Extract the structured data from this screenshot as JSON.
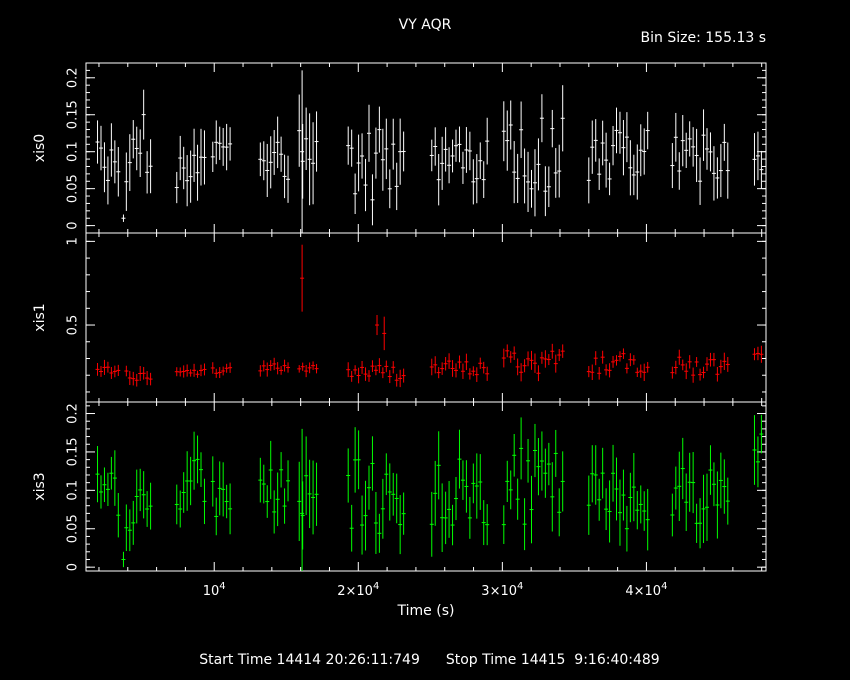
{
  "title": "VY AQR",
  "bin_size": "Bin Size: 155.13 s",
  "start_time": "Start Time 14414 20:26:11:749",
  "stop_time": "Stop Time 14415  9:16:40:489",
  "colors": {
    "background": "#000000",
    "axes": "#ffffff",
    "xis0": "#ffffff",
    "xis1": "#ff0000",
    "xis3": "#00ff00"
  },
  "chart_data": {
    "type": "scatter",
    "xlabel": "Time (s)",
    "xlim": [
      1100,
      48300
    ],
    "x_ticks": [
      {
        "value": 10000,
        "mantissa": "10",
        "exponent": "4"
      },
      {
        "value": 20000,
        "mantissa": "2×10",
        "exponent": "4"
      },
      {
        "value": 30000,
        "mantissa": "3×10",
        "exponent": "4"
      },
      {
        "value": 40000,
        "mantissa": "4×10",
        "exponent": "4"
      }
    ],
    "panels": [
      {
        "ylabel": "xis0",
        "color": "#ffffff",
        "ylim": [
          -0.01,
          0.22
        ],
        "y_ticks": [
          0,
          0.05,
          0.1,
          0.15,
          0.2
        ],
        "y_tick_labels": [
          "0",
          "0.05",
          "0.1",
          "0.15",
          "0.2"
        ],
        "segments": [
          {
            "t0": 1900,
            "n": 7,
            "base": 0.085,
            "amp": 0.035,
            "err": 0.03
          },
          {
            "t0": 3900,
            "n": 8,
            "base": 0.11,
            "amp": 0.06,
            "err": 0.035
          },
          {
            "t0": 7400,
            "n": 9,
            "base": 0.075,
            "amp": 0.03,
            "err": 0.03
          },
          {
            "t0": 9900,
            "n": 6,
            "base": 0.1,
            "amp": 0.015,
            "err": 0.025
          },
          {
            "t0": 13200,
            "n": 9,
            "base": 0.085,
            "amp": 0.03,
            "err": 0.03
          },
          {
            "t0": 15900,
            "n": 6,
            "base": 0.11,
            "amp": 0.03,
            "err": 0.05
          },
          {
            "t0": 19300,
            "n": 17,
            "base": 0.08,
            "amp": 0.05,
            "err": 0.035
          },
          {
            "t0": 25100,
            "n": 17,
            "base": 0.085,
            "amp": 0.035,
            "err": 0.03
          },
          {
            "t0": 30100,
            "n": 18,
            "base": 0.1,
            "amp": 0.06,
            "err": 0.035
          },
          {
            "t0": 36000,
            "n": 18,
            "base": 0.095,
            "amp": 0.035,
            "err": 0.03
          },
          {
            "t0": 41800,
            "n": 17,
            "base": 0.09,
            "amp": 0.035,
            "err": 0.03
          },
          {
            "t0": 47500,
            "n": 3,
            "base": 0.07,
            "amp": 0.04,
            "err": 0.03
          }
        ],
        "spikes": [
          {
            "t": 3700,
            "v": 0.01,
            "err": 0.005
          },
          {
            "t": 16100,
            "v": 0.1,
            "err": 0.11
          }
        ]
      },
      {
        "ylabel": "xis1",
        "color": "#ff0000",
        "ylim": [
          0.04,
          1.05
        ],
        "y_ticks": [
          0.5,
          1
        ],
        "y_tick_labels": [
          "0.5",
          "1"
        ],
        "segments": [
          {
            "t0": 1900,
            "n": 7,
            "base": 0.22,
            "amp": 0.04,
            "err": 0.035
          },
          {
            "t0": 3900,
            "n": 8,
            "base": 0.22,
            "amp": 0.05,
            "err": 0.035
          },
          {
            "t0": 7400,
            "n": 9,
            "base": 0.22,
            "amp": 0.02,
            "err": 0.03
          },
          {
            "t0": 9900,
            "n": 6,
            "base": 0.23,
            "amp": 0.02,
            "err": 0.03
          },
          {
            "t0": 13200,
            "n": 9,
            "base": 0.25,
            "amp": 0.04,
            "err": 0.035
          },
          {
            "t0": 15900,
            "n": 6,
            "base": 0.24,
            "amp": 0.02,
            "err": 0.03
          },
          {
            "t0": 19300,
            "n": 17,
            "base": 0.22,
            "amp": 0.05,
            "err": 0.04
          },
          {
            "t0": 25100,
            "n": 17,
            "base": 0.24,
            "amp": 0.05,
            "err": 0.04
          },
          {
            "t0": 30100,
            "n": 18,
            "base": 0.28,
            "amp": 0.08,
            "err": 0.045
          },
          {
            "t0": 36000,
            "n": 18,
            "base": 0.27,
            "amp": 0.06,
            "err": 0.04
          },
          {
            "t0": 41800,
            "n": 17,
            "base": 0.25,
            "amp": 0.06,
            "err": 0.04
          },
          {
            "t0": 47500,
            "n": 3,
            "base": 0.28,
            "amp": 0.06,
            "err": 0.04
          }
        ],
        "spikes": [
          {
            "t": 16100,
            "v": 0.78,
            "err": 0.2
          },
          {
            "t": 21300,
            "v": 0.5,
            "err": 0.06
          },
          {
            "t": 21800,
            "v": 0.45,
            "err": 0.1
          }
        ]
      },
      {
        "ylabel": "xis3",
        "color": "#00ff00",
        "ylim": [
          -0.005,
          0.215
        ],
        "y_ticks": [
          0,
          0.05,
          0.1,
          0.15,
          0.2
        ],
        "y_tick_labels": [
          "0",
          "0.05",
          "0.1",
          "0.15",
          "0.2"
        ],
        "segments": [
          {
            "t0": 1900,
            "n": 7,
            "base": 0.095,
            "amp": 0.03,
            "err": 0.03
          },
          {
            "t0": 3900,
            "n": 8,
            "base": 0.075,
            "amp": 0.03,
            "err": 0.03
          },
          {
            "t0": 7400,
            "n": 9,
            "base": 0.11,
            "amp": 0.035,
            "err": 0.03
          },
          {
            "t0": 9900,
            "n": 6,
            "base": 0.09,
            "amp": 0.025,
            "err": 0.03
          },
          {
            "t0": 13200,
            "n": 9,
            "base": 0.1,
            "amp": 0.035,
            "err": 0.03
          },
          {
            "t0": 15900,
            "n": 6,
            "base": 0.085,
            "amp": 0.035,
            "err": 0.04
          },
          {
            "t0": 19300,
            "n": 17,
            "base": 0.09,
            "amp": 0.05,
            "err": 0.035
          },
          {
            "t0": 25100,
            "n": 17,
            "base": 0.095,
            "amp": 0.05,
            "err": 0.035
          },
          {
            "t0": 30100,
            "n": 18,
            "base": 0.105,
            "amp": 0.05,
            "err": 0.035
          },
          {
            "t0": 36000,
            "n": 18,
            "base": 0.09,
            "amp": 0.04,
            "err": 0.035
          },
          {
            "t0": 41800,
            "n": 17,
            "base": 0.095,
            "amp": 0.04,
            "err": 0.035
          },
          {
            "t0": 47500,
            "n": 3,
            "base": 0.16,
            "amp": 0.025,
            "err": 0.035
          }
        ],
        "spikes": [
          {
            "t": 3700,
            "v": 0.01,
            "err": 0.01
          },
          {
            "t": 16100,
            "v": 0.07,
            "err": 0.11
          }
        ]
      }
    ]
  }
}
